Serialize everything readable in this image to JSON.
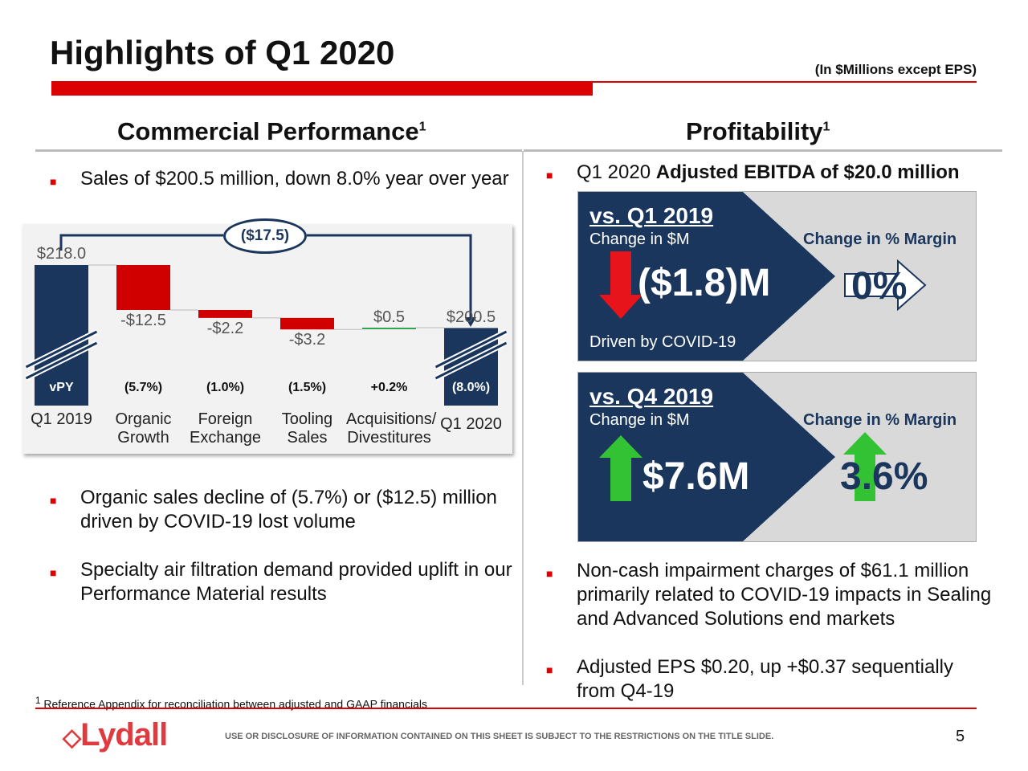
{
  "header": {
    "title": "Highlights of Q1 2020",
    "units": "(In $Millions except EPS)"
  },
  "commercial": {
    "heading": "Commercial Performance",
    "sup": "1",
    "bullets": [
      "Sales of $200.5 million, down 8.0% year over year",
      "Organic sales decline of (5.7%) or ($12.5) million driven by COVID-19 lost volume",
      "Specialty air filtration demand provided uplift in our Performance Material results"
    ]
  },
  "profitability": {
    "heading": "Profitability",
    "sup": "1",
    "bullet1_prefix": "Q1 2020 ",
    "bullet1_bold": "Adjusted EBITDA of $20.0 million",
    "panels": [
      {
        "title": "vs. Q1 2019",
        "sub": "Change in $M",
        "margin_label": "Change in % Margin",
        "value": "($1.8)M",
        "margin": "0%",
        "note": "Driven by COVID-19",
        "direction": "down",
        "color": "#e8141b"
      },
      {
        "title": "vs. Q4 2019",
        "sub": "Change in $M",
        "margin_label": "Change in % Margin",
        "value": "$7.6M",
        "margin": "3.6%",
        "note": "",
        "direction": "up",
        "color": "#33c233"
      }
    ],
    "bullets": [
      "Non-cash impairment charges of $61.1 million primarily related to COVID-19 impacts in Sealing and Advanced Solutions end markets",
      "Adjusted EPS $0.20, up +$0.37 sequentially from Q4-19"
    ]
  },
  "chart_data": {
    "type": "waterfall",
    "categories": [
      "Q1 2019",
      "Organic Growth",
      "Foreign Exchange",
      "Tooling Sales",
      "Acquisitions/ Divestitures",
      "Q1 2020"
    ],
    "values": [
      218.0,
      -12.5,
      -2.2,
      -3.2,
      0.5,
      200.5
    ],
    "value_labels": [
      "$218.0",
      "-$12.5",
      "-$2.2",
      "-$3.2",
      "$0.5",
      "$200.5"
    ],
    "pct_labels": [
      "vPY",
      "(5.7%)",
      "(1.0%)",
      "(1.5%)",
      "+0.2%",
      "(8.0%)"
    ],
    "total_change": "($17.5)",
    "axis_broken": true,
    "colors": {
      "total": "#1b365d",
      "negative": "#d00000",
      "positive": "#2ca24c"
    }
  },
  "footer": {
    "footnote_sup": "1",
    "footnote": "Reference Appendix for reconciliation between adjusted and GAAP financials",
    "logo": "Lydall",
    "disclaimer": "USE OR DISCLOSURE OF INFORMATION CONTAINED ON THIS SHEET IS SUBJECT TO THE RESTRICTIONS ON THE TITLE SLIDE.",
    "page": "5"
  }
}
